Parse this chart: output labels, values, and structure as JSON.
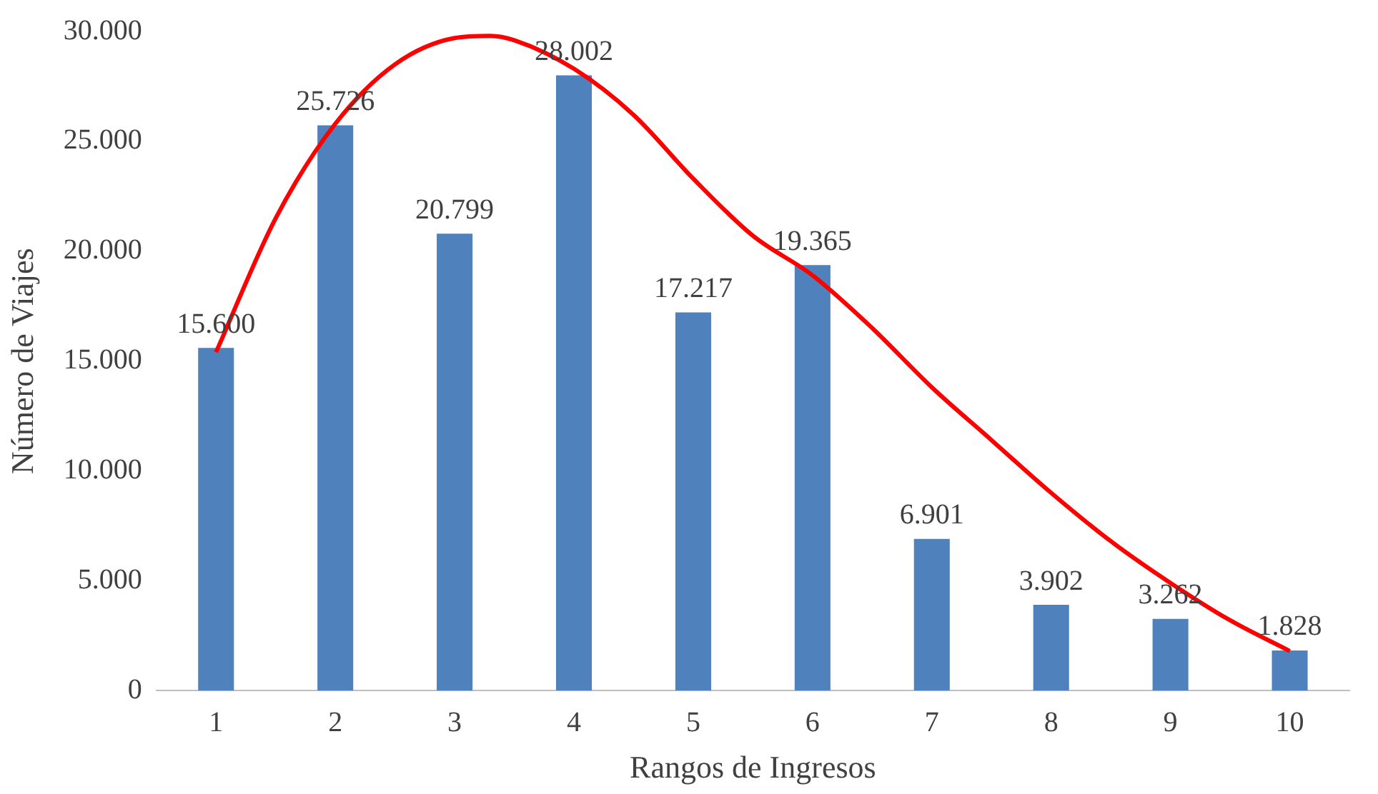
{
  "chart_data": {
    "type": "bar",
    "xlabel": "Rangos de Ingresos",
    "ylabel": "Número de Viajes",
    "x": [
      1,
      2,
      3,
      4,
      5,
      6,
      7,
      8,
      9,
      10
    ],
    "xlim": [
      0.5,
      10.5
    ],
    "xticks": [
      1,
      2,
      3,
      4,
      5,
      6,
      7,
      8,
      9,
      10
    ],
    "series": [
      {
        "color": "#4f81bd",
        "values": [
          15600,
          25726,
          20799,
          28002,
          17217,
          19365,
          6901,
          3902,
          3262,
          1828
        ],
        "value_labels": [
          "15.600",
          "25.726",
          "20.799",
          "28.002",
          "17.217",
          "19.365",
          "6.901",
          "3.902",
          "3.262",
          "1.828"
        ]
      },
      {
        "type": "line",
        "color": "#ff0000",
        "marker": "none",
        "line_style": "solid",
        "x": [
          1,
          1.5,
          2,
          2.5,
          3,
          3.3,
          3.5,
          4,
          4.5,
          5,
          5.5,
          6,
          6.5,
          7,
          7.5,
          8,
          8.5,
          9,
          9.5,
          10
        ],
        "values": [
          15400,
          21500,
          25800,
          28500,
          29700,
          29800,
          29600,
          28300,
          26200,
          23300,
          20700,
          18900,
          16500,
          13800,
          11400,
          9000,
          6800,
          4900,
          3200,
          1800
        ]
      }
    ],
    "ylim": [
      0,
      30000
    ],
    "yticks": [
      {
        "value": 0,
        "label": "0"
      },
      {
        "value": 5000,
        "label": "5.000"
      },
      {
        "value": 10000,
        "label": "10.000"
      },
      {
        "value": 15000,
        "label": "15.000"
      },
      {
        "value": 20000,
        "label": "20.000"
      },
      {
        "value": 25000,
        "label": "25.000"
      },
      {
        "value": 30000,
        "label": "30.000"
      }
    ],
    "grid": false,
    "legend": false
  }
}
